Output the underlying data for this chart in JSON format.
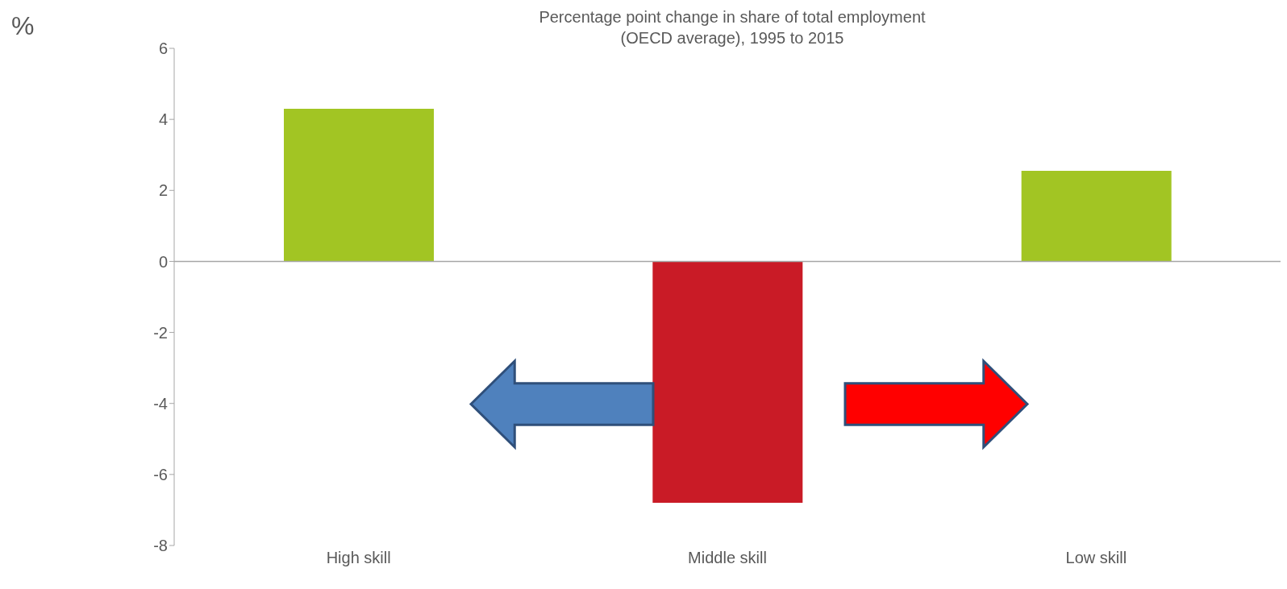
{
  "chart_data": {
    "type": "bar",
    "title": "Percentage point change in share of total employment\n(OECD average), 1995 to 2015",
    "ylabel": "%",
    "categories": [
      "High skill",
      "Middle skill",
      "Low skill"
    ],
    "values": [
      4.3,
      -6.8,
      2.55
    ],
    "colors": [
      "#a2c523",
      "#c91b26",
      "#a2c523"
    ],
    "ylim": [
      -8,
      6
    ],
    "yticks": [
      -8,
      -6,
      -4,
      -2,
      0,
      2,
      4,
      6
    ],
    "legend": false
  }
}
